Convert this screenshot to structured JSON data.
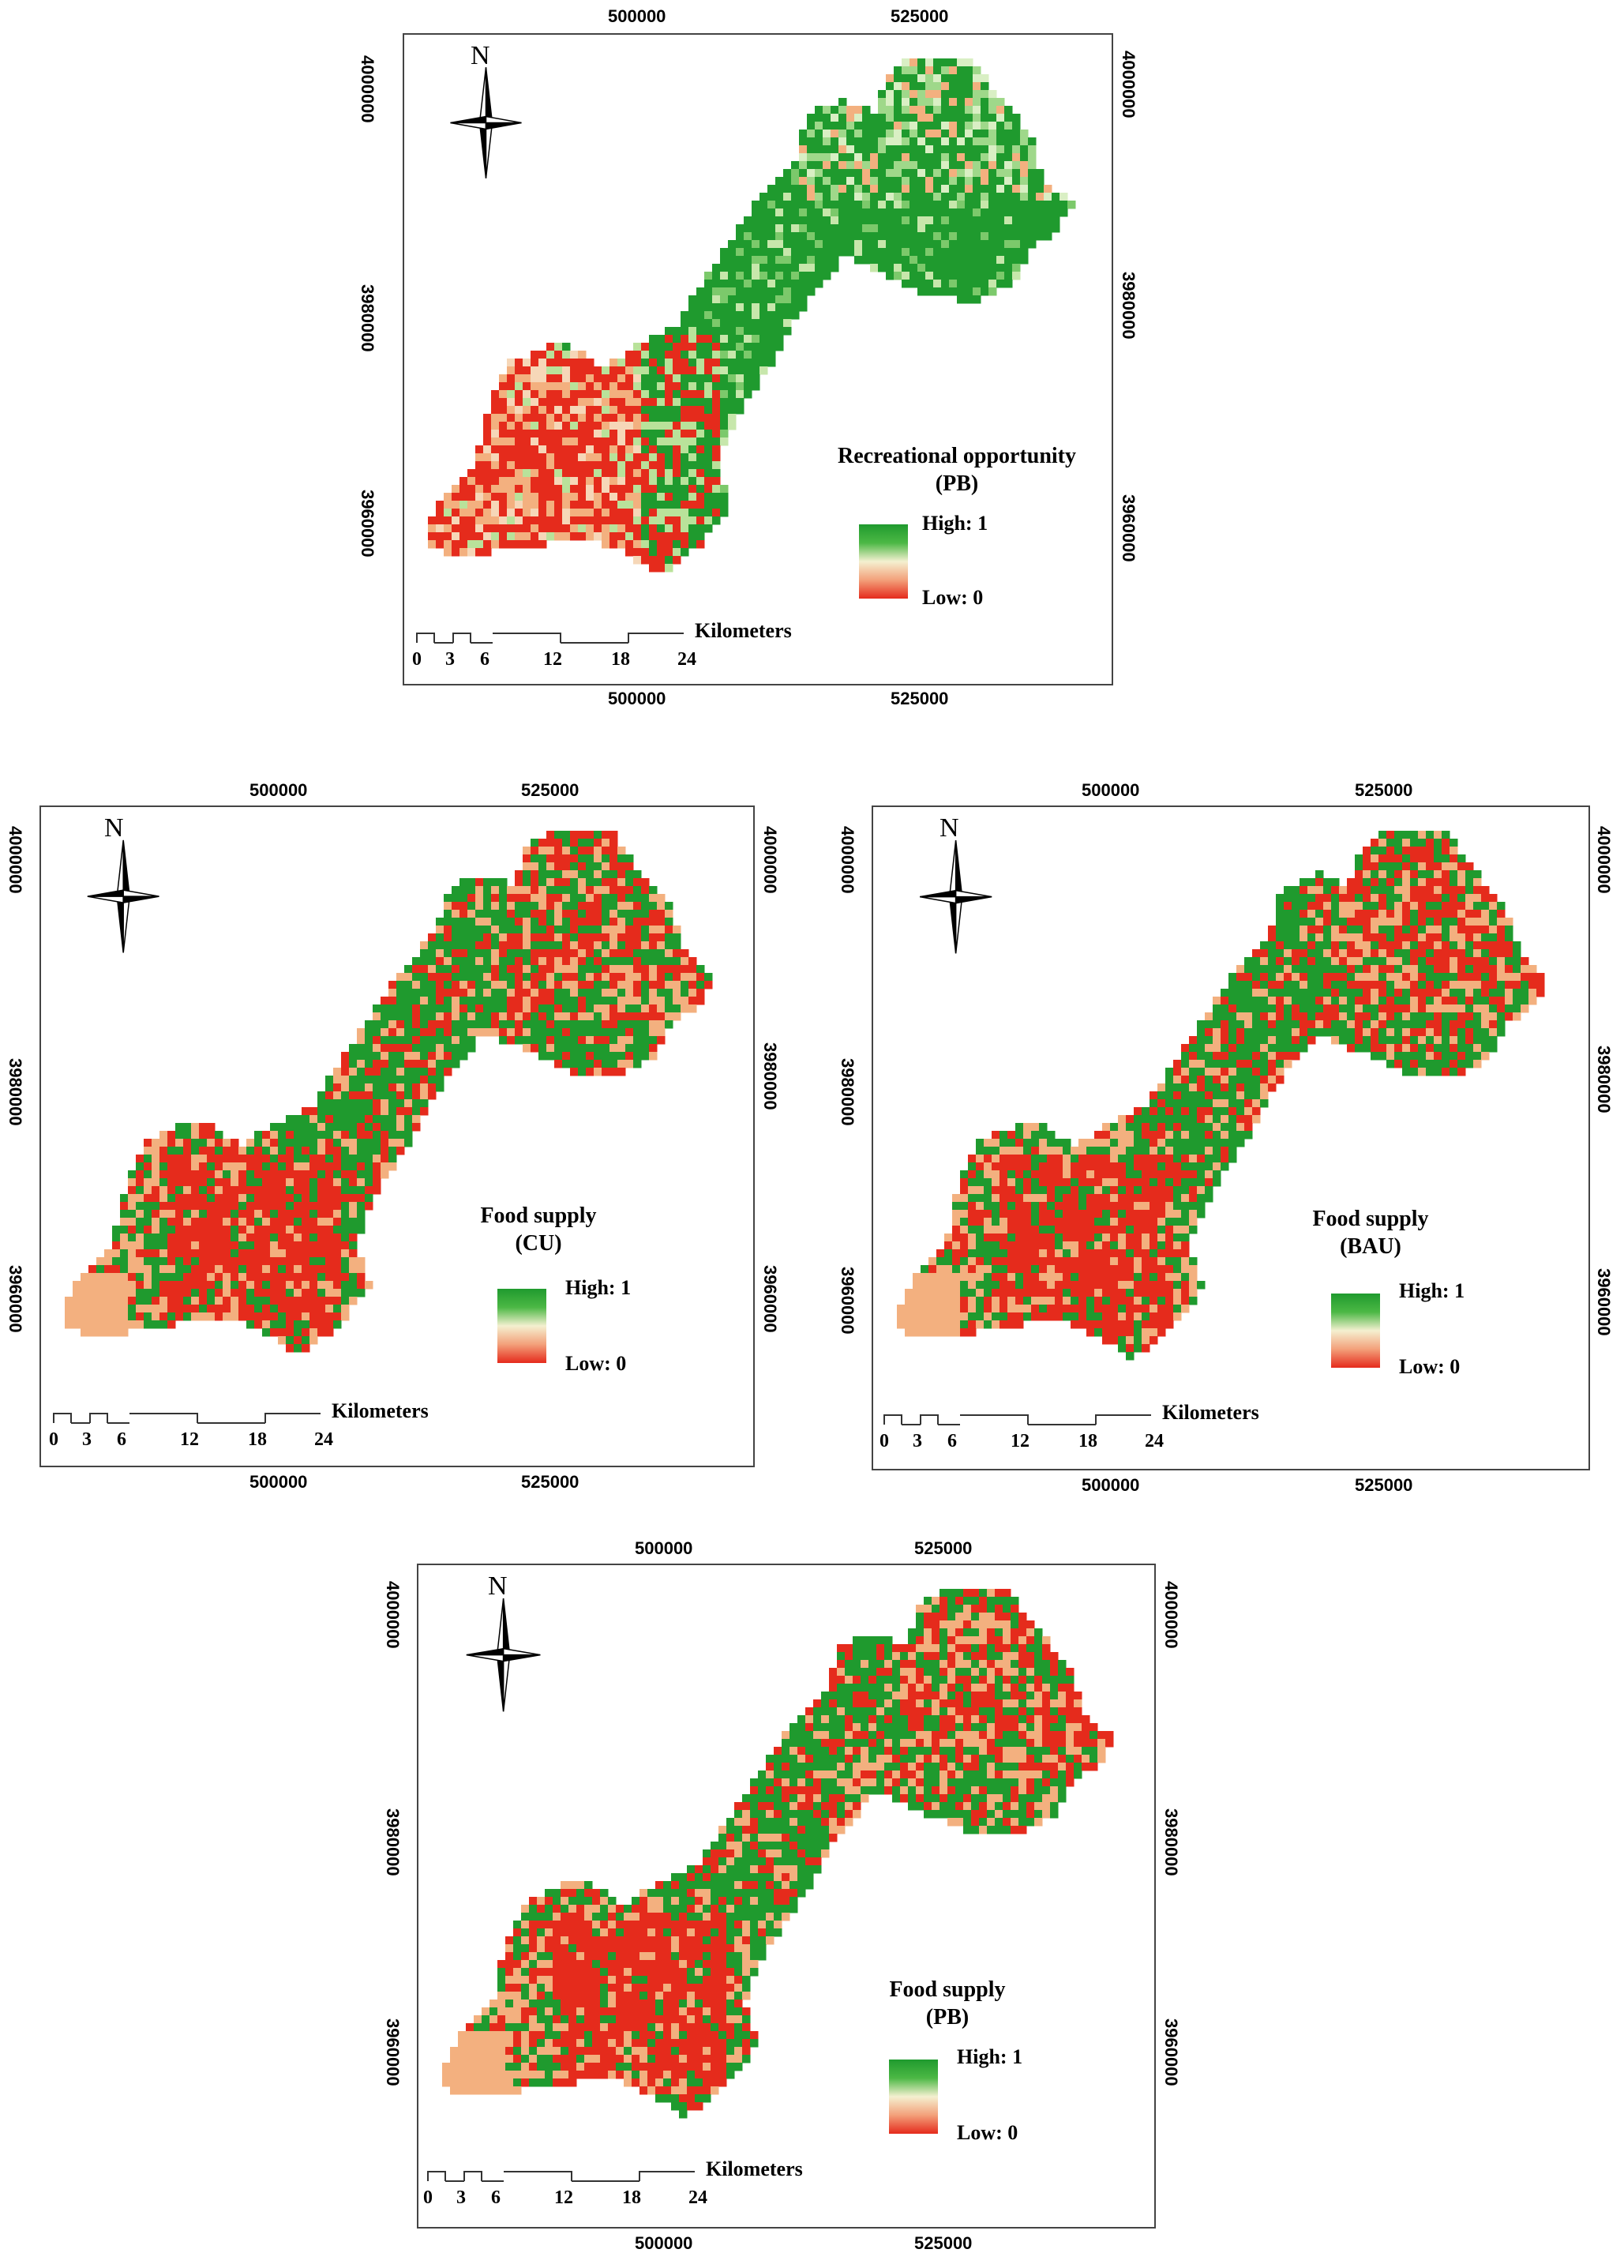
{
  "axis": {
    "x_ticks": [
      "500000",
      "525000"
    ],
    "y_ticks": [
      "4000000",
      "3980000",
      "3960000"
    ]
  },
  "north_label": "N",
  "scale": {
    "ticks": [
      "0",
      "3",
      "6",
      "12",
      "18",
      "24"
    ],
    "unit": "Kilometers"
  },
  "legend": {
    "high": "High: 1",
    "low": "Low: 0"
  },
  "colors": {
    "high": "#1f9a2e",
    "mid": "#f4f0d0",
    "low": "#e52b1c",
    "peach": "#f3b07f"
  },
  "panels": [
    {
      "title_line1": "Recreational opportunity",
      "title_line2": "(PB)",
      "theme": "recreation"
    },
    {
      "title_line1": "Food supply",
      "title_line2": "(CU)",
      "theme": "food"
    },
    {
      "title_line1": "Food supply",
      "title_line2": "(BAU)",
      "theme": "food"
    },
    {
      "title_line1": "Food supply",
      "title_line2": "(PB)",
      "theme": "food"
    }
  ]
}
